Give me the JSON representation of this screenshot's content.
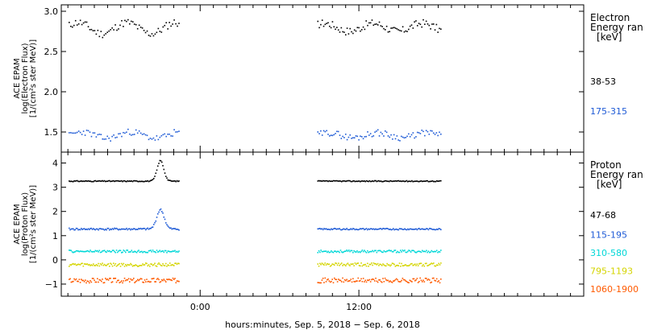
{
  "chart_data": [
    {
      "type": "scatter",
      "panel": "electron",
      "ylabel_lines": [
        "ACE EPAM",
        "log(Electron Flux)",
        "[1/(cm²s ster MeV)]"
      ],
      "ylim": [
        1.25,
        3.08
      ],
      "yticks": [
        1.5,
        2.0,
        2.5,
        3.0
      ],
      "ytick_labels": [
        "1.5",
        "2.0",
        "2.5",
        "3.0"
      ],
      "legend_title": [
        "Electron",
        "Energy ran",
        "[keV]"
      ],
      "series": [
        {
          "name": "38-53",
          "color": "#000000",
          "label_y": 2.13,
          "segments": [
            {
              "x_start": -9.9,
              "x_end": -1.6,
              "points": 70,
              "base": 2.79,
              "amp": 0.07,
              "noise": 0.05,
              "seed": 11,
              "peak": null
            },
            {
              "x_start": 8.9,
              "x_end": 18.2,
              "points": 85,
              "base": 2.8,
              "amp": 0.05,
              "noise": 0.05,
              "seed": 17,
              "peak": null
            }
          ]
        },
        {
          "name": "175-315",
          "color": "#1f5bd6",
          "label_y": 1.76,
          "segments": [
            {
              "x_start": -9.9,
              "x_end": -1.6,
              "points": 70,
              "base": 1.46,
              "amp": 0.04,
              "noise": 0.04,
              "seed": 23,
              "peak": null
            },
            {
              "x_start": 8.9,
              "x_end": 18.2,
              "points": 85,
              "base": 1.46,
              "amp": 0.03,
              "noise": 0.04,
              "seed": 29,
              "peak": null
            }
          ]
        }
      ]
    },
    {
      "type": "scatter",
      "panel": "proton",
      "ylabel_lines": [
        "ACE EPAM",
        "log(Proton Flux)",
        "[1/(cm²s ster MeV)]"
      ],
      "ylim": [
        -1.5,
        4.45
      ],
      "yticks": [
        -1,
        0,
        1,
        2,
        3,
        4
      ],
      "ytick_labels": [
        "−1",
        "0",
        "1",
        "2",
        "3",
        "4"
      ],
      "legend_title": [
        "Proton",
        "Energy ran",
        "[keV]"
      ],
      "series": [
        {
          "name": "47-68",
          "color": "#000000",
          "label_y": 1.85,
          "segments": [
            {
              "x_start": -9.9,
              "x_end": -1.6,
              "points": 110,
              "base": 3.25,
              "amp": 0.0,
              "noise": 0.02,
              "seed": 31,
              "peak": {
                "x": -3.0,
                "height": 0.85,
                "width": 0.35
              }
            },
            {
              "x_start": 8.9,
              "x_end": 18.2,
              "points": 120,
              "base": 3.25,
              "amp": 0.0,
              "noise": 0.02,
              "seed": 37,
              "peak": null
            }
          ]
        },
        {
          "name": "115-195",
          "color": "#1f5bd6",
          "label_y": 1.05,
          "segments": [
            {
              "x_start": -9.9,
              "x_end": -1.6,
              "points": 110,
              "base": 1.27,
              "amp": 0.0,
              "noise": 0.04,
              "seed": 41,
              "peak": {
                "x": -3.0,
                "height": 0.8,
                "width": 0.4
              }
            },
            {
              "x_start": 8.9,
              "x_end": 18.2,
              "points": 120,
              "base": 1.27,
              "amp": 0.0,
              "noise": 0.03,
              "seed": 43,
              "peak": null
            }
          ]
        },
        {
          "name": "310-580",
          "color": "#00d7d7",
          "label_y": 0.3,
          "segments": [
            {
              "x_start": -9.9,
              "x_end": -1.6,
              "points": 110,
              "base": 0.35,
              "amp": 0.0,
              "noise": 0.05,
              "seed": 47,
              "peak": null
            },
            {
              "x_start": 8.9,
              "x_end": 18.2,
              "points": 120,
              "base": 0.35,
              "amp": 0.0,
              "noise": 0.05,
              "seed": 53,
              "peak": null
            }
          ]
        },
        {
          "name": "795-1193",
          "color": "#d4d400",
          "label_y": -0.45,
          "segments": [
            {
              "x_start": -9.9,
              "x_end": -1.6,
              "points": 110,
              "base": -0.2,
              "amp": 0.0,
              "noise": 0.07,
              "seed": 59,
              "peak": null
            },
            {
              "x_start": 8.9,
              "x_end": 18.2,
              "points": 120,
              "base": -0.2,
              "amp": 0.0,
              "noise": 0.07,
              "seed": 61,
              "peak": null
            }
          ]
        },
        {
          "name": "1060-1900",
          "color": "#ff5a00",
          "label_y": -1.2,
          "segments": [
            {
              "x_start": -9.9,
              "x_end": -1.6,
              "points": 110,
              "base": -0.85,
              "amp": 0.0,
              "noise": 0.1,
              "seed": 67,
              "peak": null
            },
            {
              "x_start": 8.9,
              "x_end": 18.2,
              "points": 120,
              "base": -0.85,
              "amp": 0.0,
              "noise": 0.1,
              "seed": 71,
              "peak": null
            }
          ]
        }
      ]
    }
  ],
  "x_axis": {
    "xlim": [
      -10.5,
      29
    ],
    "major_ticks": [
      0,
      12
    ],
    "tick_labels": [
      "0:00",
      "12:00"
    ],
    "minor_step": 1
  },
  "xlabel": "hours:minutes, Sep.  5, 2018 − Sep.  6, 2018"
}
